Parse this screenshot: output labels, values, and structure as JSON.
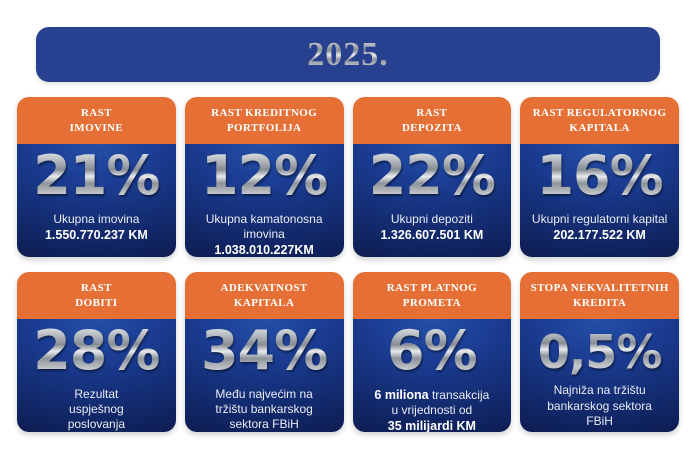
{
  "title": "2025.",
  "colors": {
    "orange": "#E56F35",
    "banner_blue": "#27408F",
    "card_blue_top": "#2450A8",
    "card_blue_bottom": "#0A1440",
    "silver": "#B9BDC2",
    "text_white": "#FFFFFF"
  },
  "cards": [
    {
      "name": "rast-imovine",
      "header_lines": [
        "RAST",
        "IMOVINE"
      ],
      "value": "21%",
      "desc_lines": [
        [
          {
            "t": "Ukupna imovina",
            "b": false
          }
        ],
        [
          {
            "t": "1.550.770.237 KM",
            "b": true
          }
        ]
      ]
    },
    {
      "name": "rast-kreditnog-portfolija",
      "header_lines": [
        "RAST KREDITNOG",
        "PORTFOLIJA"
      ],
      "value": "12%",
      "desc_lines": [
        [
          {
            "t": "Ukupna kamatonosna imovina",
            "b": false
          }
        ],
        [
          {
            "t": "1.038.010.227KM",
            "b": true
          }
        ]
      ]
    },
    {
      "name": "rast-depozita",
      "header_lines": [
        "RAST",
        "DEPOZITA"
      ],
      "value": "22%",
      "desc_lines": [
        [
          {
            "t": "Ukupni depoziti",
            "b": false
          }
        ],
        [
          {
            "t": "1.326.607.501 KM",
            "b": true
          }
        ]
      ]
    },
    {
      "name": "rast-regulatornog-kapitala",
      "header_lines": [
        "RAST REGULATORNOG",
        "KAPITALA"
      ],
      "value": "16%",
      "desc_lines": [
        [
          {
            "t": "Ukupni regulatorni kapital",
            "b": false
          }
        ],
        [
          {
            "t": "202.177.522 KM",
            "b": true
          }
        ]
      ]
    },
    {
      "name": "rast-dobiti",
      "header_lines": [
        "RAST",
        "DOBITI"
      ],
      "value": "28%",
      "desc_lines": [
        [
          {
            "t": "Rezultat",
            "b": false
          }
        ],
        [
          {
            "t": "uspješnog",
            "b": false
          }
        ],
        [
          {
            "t": "poslovanja",
            "b": false
          }
        ]
      ]
    },
    {
      "name": "adekvatnost-kapitala",
      "header_lines": [
        "ADEKVATNOST",
        "KAPITALA"
      ],
      "value": "34%",
      "desc_lines": [
        [
          {
            "t": "Među najvećim na",
            "b": false
          }
        ],
        [
          {
            "t": "tržištu bankarskog",
            "b": false
          }
        ],
        [
          {
            "t": "sektora FBiH",
            "b": false
          }
        ]
      ]
    },
    {
      "name": "rast-platnog-prometa",
      "header_lines": [
        "RAST PLATNOG",
        "PROMETA"
      ],
      "value": "6%",
      "desc_lines": [
        [
          {
            "t": "6 miliona",
            "b": true
          },
          {
            "t": " transakcija",
            "b": false
          }
        ],
        [
          {
            "t": "u vrijednosti od",
            "b": false
          }
        ],
        [
          {
            "t": "35 milijardi KM",
            "b": true
          }
        ]
      ]
    },
    {
      "name": "stopa-nekvalitetnih-kredita",
      "header_lines": [
        "STOPA NEKVALITETNIH",
        "KREDITA"
      ],
      "value": "0,5%",
      "desc_lines": [
        [
          {
            "t": "Najniža na tržištu",
            "b": false
          }
        ],
        [
          {
            "t": "bankarskog sektora",
            "b": false
          }
        ],
        [
          {
            "t": "FBiH",
            "b": false
          }
        ]
      ]
    }
  ],
  "chart_data": {
    "type": "table",
    "title": "2025.",
    "categories": [
      "Rast imovine",
      "Rast kreditnog portfolija",
      "Rast depozita",
      "Rast regulatornog kapitala",
      "Rast dobiti",
      "Adekvatnost kapitala",
      "Rast platnog prometa",
      "Stopa nekvalitetnih kredita"
    ],
    "values": [
      21,
      12,
      22,
      16,
      28,
      34,
      6,
      0.5
    ],
    "unit": "%",
    "annotations": [
      "Ukupna imovina 1.550.770.237 KM",
      "Ukupna kamatonosna imovina 1.038.010.227KM",
      "Ukupni depoziti 1.326.607.501 KM",
      "Ukupni regulatorni kapital 202.177.522 KM",
      "Rezultat uspješnog poslovanja",
      "Među najvećim na tržištu bankarskog sektora FBiH",
      "6 miliona transakcija u vrijednosti od 35 milijardi KM",
      "Najniža na tržištu bankarskog sektora FBiH"
    ]
  }
}
